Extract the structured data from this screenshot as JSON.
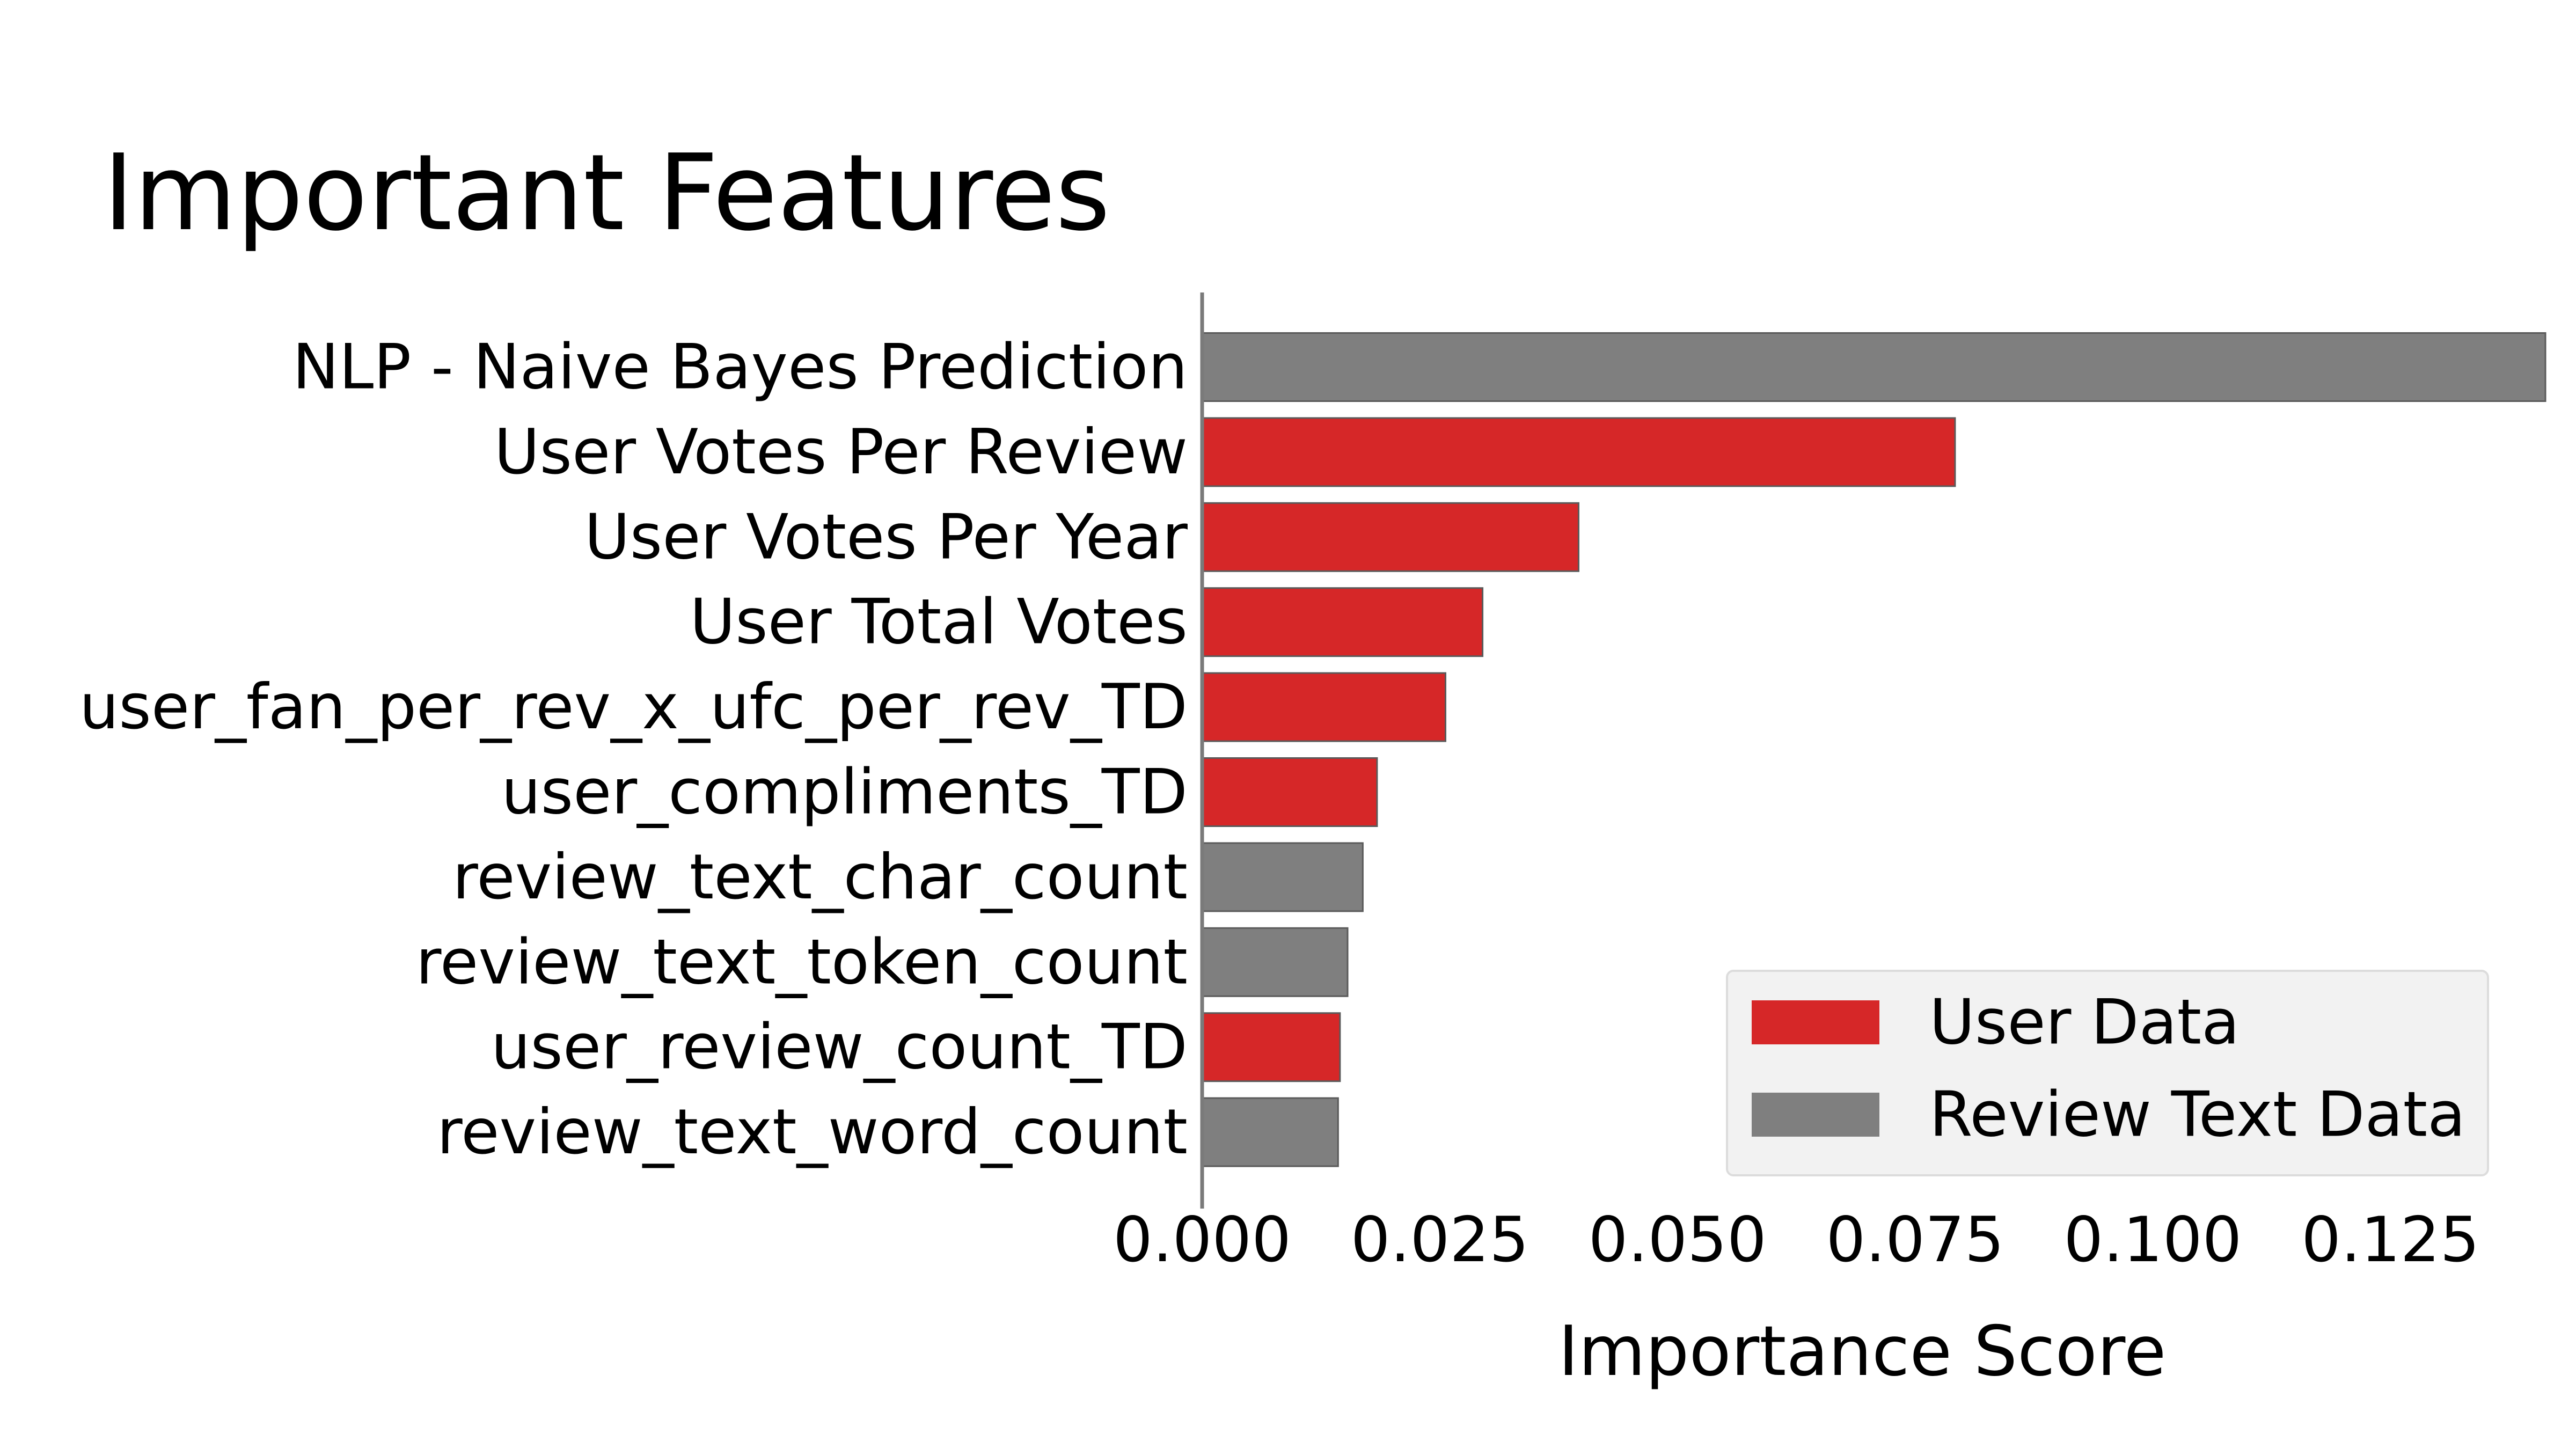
{
  "chart_data": {
    "type": "bar",
    "orientation": "horizontal",
    "title": "Important Features",
    "xlabel": "Importance Score",
    "ylabel": "",
    "xlim": [
      0,
      0.145
    ],
    "xticks": [
      "0.000",
      "0.025",
      "0.050",
      "0.075",
      "0.100",
      "0.125"
    ],
    "xtick_values": [
      0,
      0.025,
      0.05,
      0.075,
      0.1,
      0.125
    ],
    "grid": false,
    "legend_position": "bottom-right",
    "legend": [
      {
        "label": "User Data",
        "color": "#d62728"
      },
      {
        "label": "Review Text Data",
        "color": "#7f7f7f"
      }
    ],
    "categories": [
      "NLP - Naive Bayes Prediction",
      "User Votes Per Review",
      "User Votes Per Year",
      "User Total Votes",
      "user_fan_per_rev_x_ufc_per_rev_TD",
      "user_compliments_TD",
      "review_text_char_count",
      "review_text_token_count",
      "user_review_count_TD",
      "review_text_word_count"
    ],
    "values": [
      0.1413,
      0.0792,
      0.0396,
      0.0295,
      0.0256,
      0.0184,
      0.0169,
      0.0153,
      0.0145,
      0.0143
    ],
    "groups": [
      "Review Text Data",
      "User Data",
      "User Data",
      "User Data",
      "User Data",
      "User Data",
      "Review Text Data",
      "Review Text Data",
      "User Data",
      "Review Text Data"
    ],
    "colors": {
      "User Data": "#d62728",
      "Review Text Data": "#7f7f7f"
    }
  }
}
